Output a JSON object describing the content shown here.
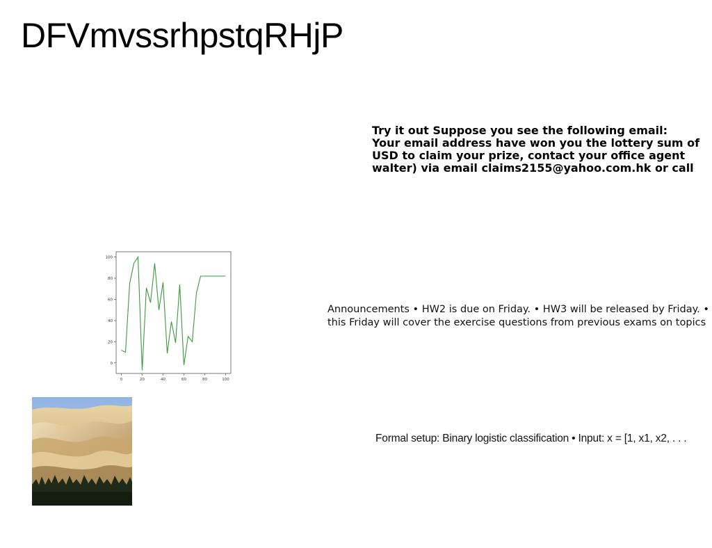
{
  "page": {
    "title": "DFVmvssrhpstqRHjP"
  },
  "email_text": {
    "lines": [
      "Try it out Suppose you see the following email:",
      "Your email address have won you the lottery sum of",
      "USD to claim your prize, contact your office agent",
      "walter) via email claims2155@yahoo.com.hk or call"
    ]
  },
  "announcements": {
    "lines": [
      "Announcements • HW2 is due on Friday. • HW3 will be released by Friday. •",
      "this Friday will cover the exercise questions from previous exams on topics"
    ]
  },
  "formal_setup": {
    "text": "Formal setup: Binary logistic classification • Input: x = [1, x1, x2, . . ."
  },
  "image": {
    "description_icon": "desert-dunes-image"
  },
  "chart_data": {
    "type": "line",
    "title": "",
    "xlabel": "",
    "ylabel": "",
    "xlim": [
      -5,
      105
    ],
    "ylim": [
      -10,
      105
    ],
    "x_ticks": [
      0,
      20,
      40,
      60,
      80,
      100
    ],
    "y_ticks": [
      0,
      20,
      40,
      60,
      80,
      100
    ],
    "line_color": "#3a9a3a",
    "series": [
      {
        "x": [
          0,
          4,
          8,
          12,
          16,
          20,
          24,
          28,
          32,
          36,
          40,
          44,
          48,
          52,
          56,
          60,
          64,
          68,
          72,
          76,
          80,
          84,
          88,
          92,
          96,
          100
        ],
        "values": [
          12,
          10,
          75,
          94,
          100,
          -7,
          71,
          57,
          94,
          50,
          76,
          9,
          39,
          19,
          74,
          -2,
          25,
          20,
          66,
          82,
          82,
          82,
          82,
          82,
          82,
          82
        ]
      }
    ]
  }
}
